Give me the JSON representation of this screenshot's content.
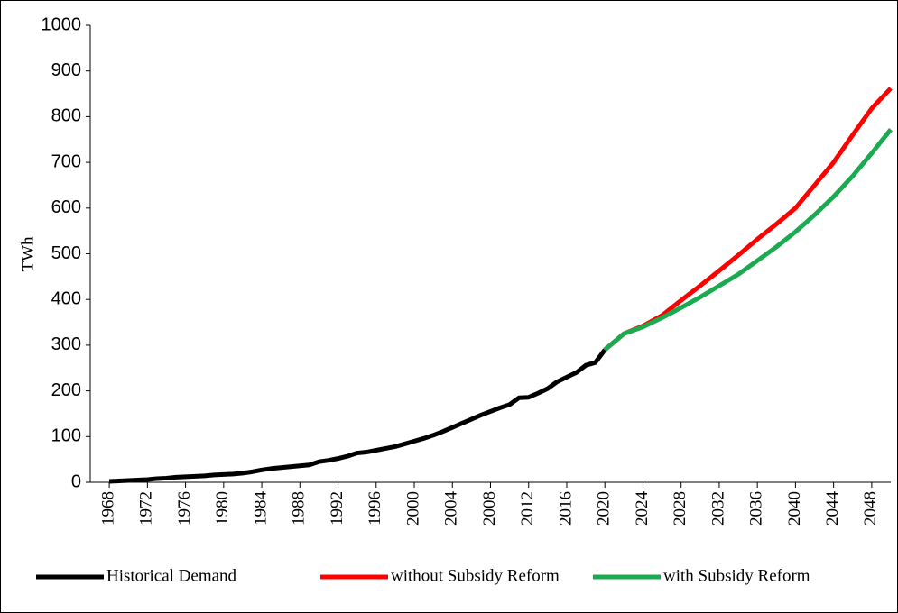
{
  "chart_data": {
    "type": "line",
    "y_label": "TWh",
    "xlim": [
      1966,
      2050
    ],
    "xticks": [
      1968,
      1972,
      1976,
      1980,
      1984,
      1988,
      1992,
      1996,
      2000,
      2004,
      2008,
      2012,
      2016,
      2020,
      2024,
      2028,
      2032,
      2036,
      2040,
      2044,
      2048
    ],
    "ylim": [
      0,
      1000
    ],
    "yticks": [
      0,
      100,
      200,
      300,
      400,
      500,
      600,
      700,
      800,
      900,
      1000
    ],
    "grid": false,
    "legend": "bottom",
    "series": [
      {
        "name": "Historical Demand",
        "color": "#000000",
        "x": [
          1968,
          1969,
          1970,
          1971,
          1972,
          1973,
          1974,
          1975,
          1976,
          1977,
          1978,
          1979,
          1980,
          1981,
          1982,
          1983,
          1984,
          1985,
          1986,
          1987,
          1988,
          1989,
          1990,
          1991,
          1992,
          1993,
          1994,
          1995,
          1996,
          1997,
          1998,
          1999,
          2000,
          2001,
          2002,
          2003,
          2004,
          2005,
          2006,
          2007,
          2008,
          2009,
          2010,
          2011,
          2012,
          2013,
          2014,
          2015,
          2016,
          2017,
          2018,
          2019,
          2020
        ],
        "values": [
          2,
          3,
          4,
          5,
          6,
          8,
          9,
          11,
          12,
          13,
          14,
          16,
          17,
          18,
          20,
          23,
          27,
          30,
          32,
          34,
          36,
          38,
          45,
          48,
          52,
          57,
          64,
          66,
          70,
          74,
          78,
          84,
          90,
          96,
          103,
          111,
          120,
          129,
          138,
          147,
          155,
          163,
          170,
          185,
          186,
          195,
          205,
          220,
          230,
          240,
          256,
          262,
          290
        ]
      },
      {
        "name": "without Subsidy Reform",
        "color": "#ff0000",
        "x": [
          2020,
          2022,
          2024,
          2026,
          2028,
          2030,
          2032,
          2034,
          2036,
          2038,
          2040,
          2042,
          2044,
          2046,
          2048,
          2050
        ],
        "values": [
          290,
          325,
          342,
          365,
          398,
          430,
          463,
          497,
          532,
          565,
          600,
          650,
          700,
          760,
          818,
          862
        ]
      },
      {
        "name": "with Subsidy Reform",
        "color": "#1aaa50",
        "x": [
          2020,
          2022,
          2024,
          2026,
          2028,
          2030,
          2032,
          2034,
          2036,
          2038,
          2040,
          2042,
          2044,
          2046,
          2048,
          2050
        ],
        "values": [
          290,
          325,
          340,
          360,
          382,
          405,
          430,
          455,
          485,
          515,
          548,
          585,
          625,
          670,
          720,
          772
        ]
      }
    ]
  }
}
